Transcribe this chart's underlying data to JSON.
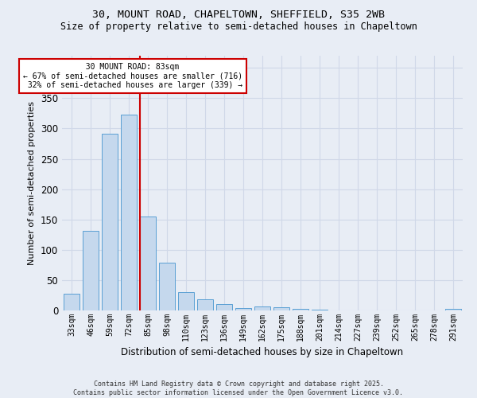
{
  "title1": "30, MOUNT ROAD, CHAPELTOWN, SHEFFIELD, S35 2WB",
  "title2": "Size of property relative to semi-detached houses in Chapeltown",
  "xlabel": "Distribution of semi-detached houses by size in Chapeltown",
  "ylabel": "Number of semi-detached properties",
  "categories": [
    "33sqm",
    "46sqm",
    "59sqm",
    "72sqm",
    "85sqm",
    "98sqm",
    "110sqm",
    "123sqm",
    "136sqm",
    "149sqm",
    "162sqm",
    "175sqm",
    "188sqm",
    "201sqm",
    "214sqm",
    "227sqm",
    "239sqm",
    "252sqm",
    "265sqm",
    "278sqm",
    "291sqm"
  ],
  "values": [
    28,
    131,
    291,
    323,
    155,
    79,
    30,
    18,
    11,
    4,
    6,
    5,
    3,
    1,
    0,
    0,
    0,
    0,
    0,
    0,
    2
  ],
  "bar_color": "#c5d8ed",
  "bar_edge_color": "#5a9fd4",
  "property_bin_index": 4,
  "property_label": "30 MOUNT ROAD: 83sqm",
  "smaller_pct": "67%",
  "smaller_n": 716,
  "larger_pct": "32%",
  "larger_n": 339,
  "vline_color": "#cc0000",
  "annotation_box_color": "#cc0000",
  "footer1": "Contains HM Land Registry data © Crown copyright and database right 2025.",
  "footer2": "Contains public sector information licensed under the Open Government Licence v3.0.",
  "ylim": [
    0,
    420
  ],
  "grid_color": "#d0d8e8",
  "bg_color": "#e8edf5"
}
